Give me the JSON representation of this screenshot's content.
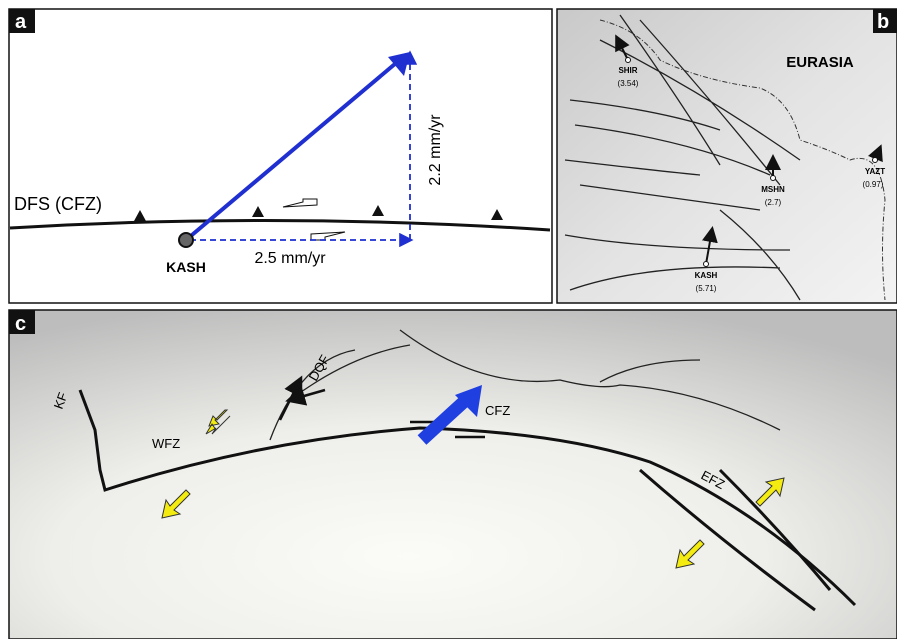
{
  "panels": {
    "a": {
      "label": "a",
      "fault": "DFS (CFZ)",
      "station": "KASH",
      "east_rate": "2.5 mm/yr",
      "north_rate": "2.2 mm/yr"
    },
    "b": {
      "label": "b",
      "plate": "EURASIA",
      "stations": [
        {
          "name": "SHIR",
          "rate": "(3.54)"
        },
        {
          "name": "MSHN",
          "rate": "(2.7)"
        },
        {
          "name": "YAZT",
          "rate": "(0.97)"
        },
        {
          "name": "KASH",
          "rate": "(5.71)"
        }
      ]
    },
    "c": {
      "label": "c",
      "faults": [
        "KF",
        "WFZ",
        "DQF",
        "CFZ",
        "EFZ"
      ]
    }
  }
}
